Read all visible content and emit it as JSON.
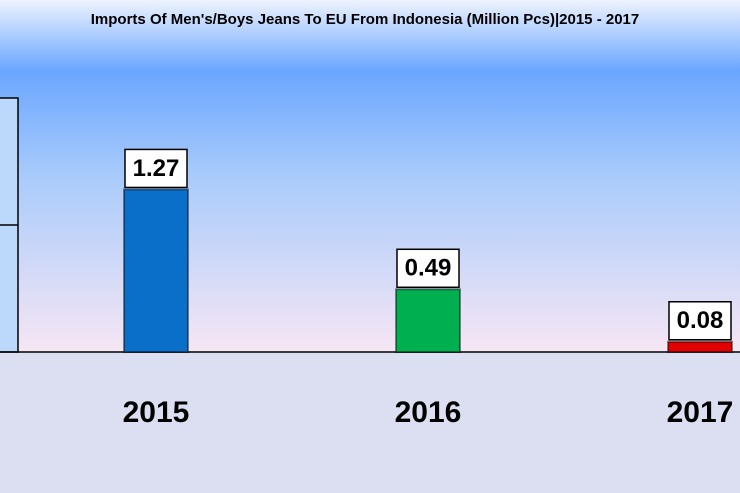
{
  "chart_data": {
    "type": "bar",
    "title": "Imports Of Men's/Boys Jeans To EU From Indonesia (Million Pcs)|2015 - 2017",
    "categories": [
      "2015",
      "2016",
      "2017"
    ],
    "values": [
      1.27,
      0.49,
      0.08
    ],
    "colors": [
      "#0a6fc9",
      "#00b050",
      "#e00000"
    ],
    "ylim": [
      0,
      2.5
    ]
  }
}
